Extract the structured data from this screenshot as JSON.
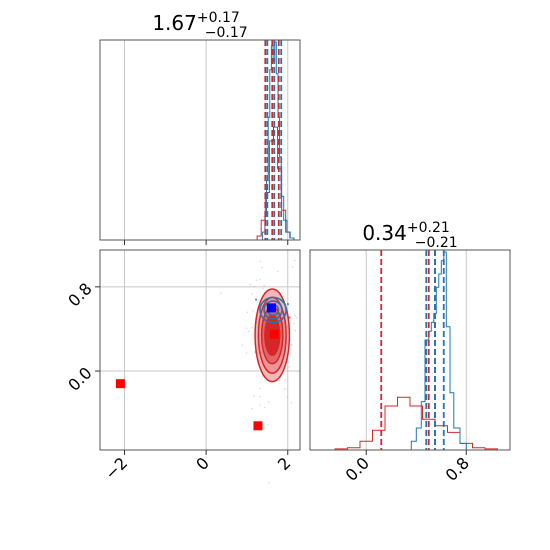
{
  "chart_data": {
    "type": "corner",
    "parameters": 2,
    "grid": true,
    "colors": {
      "blue": "#1f77b4",
      "red": "#d62728",
      "marker_red": "#ff0000",
      "marker_blue": "#0000ff",
      "grid": "#c8c8c8",
      "spine": "#555555"
    },
    "panels": [
      {
        "id": "param-0-marginal",
        "type": "histogram",
        "title": {
          "value": "1.67",
          "upper": "+0.17",
          "lower": "−0.17"
        },
        "xlim": [
          -2.6,
          2.3
        ],
        "xticks": [
          -2,
          0,
          2
        ],
        "blue_quantiles": [
          1.5,
          1.67,
          1.84
        ],
        "red_quantiles": [
          1.45,
          1.62,
          1.78
        ],
        "blue_hist": {
          "x": [
            1.3,
            1.38,
            1.44,
            1.48,
            1.52,
            1.56,
            1.6,
            1.64,
            1.68,
            1.72,
            1.76,
            1.8,
            1.84,
            1.9,
            1.98,
            2.06,
            2.15
          ],
          "y": [
            0,
            0.04,
            0.12,
            0.3,
            0.62,
            0.86,
            0.98,
            0.9,
            1.0,
            0.84,
            0.62,
            0.42,
            0.22,
            0.1,
            0.04,
            0.01,
            0
          ]
        },
        "red_hist": {
          "x": [
            1.15,
            1.25,
            1.35,
            1.45,
            1.55,
            1.65,
            1.75,
            1.85,
            1.95,
            2.05,
            2.15
          ],
          "y": [
            0,
            0.02,
            0.1,
            0.24,
            0.5,
            0.57,
            0.36,
            0.15,
            0.04,
            0.01,
            0
          ]
        }
      },
      {
        "id": "param-1-marginal",
        "type": "histogram",
        "title": {
          "value": "0.34",
          "upper": "+0.21",
          "lower": "−0.21"
        },
        "xlim": [
          -0.45,
          1.15
        ],
        "xticks": [
          0.0,
          0.8
        ],
        "xtick_labels": [
          "0.0",
          "0.8"
        ],
        "blue_quantiles": [
          0.48,
          0.55,
          0.62
        ],
        "red_quantiles": [
          0.12,
          0.5,
          0.55
        ],
        "blue_hist": {
          "x": [
            0.3,
            0.36,
            0.4,
            0.44,
            0.47,
            0.5,
            0.52,
            0.54,
            0.56,
            0.58,
            0.6,
            0.62,
            0.64,
            0.67,
            0.7,
            0.75,
            0.8
          ],
          "y": [
            0,
            0.04,
            0.1,
            0.22,
            0.5,
            0.54,
            0.58,
            0.62,
            0.74,
            0.8,
            0.86,
            0.9,
            0.56,
            0.26,
            0.1,
            0.03,
            0
          ]
        },
        "red_hist": {
          "x": [
            -0.35,
            -0.25,
            -0.15,
            -0.05,
            0.05,
            0.15,
            0.25,
            0.35,
            0.45,
            0.55,
            0.65,
            0.75,
            0.85,
            0.95,
            1.05
          ],
          "y": [
            0,
            0.005,
            0.01,
            0.04,
            0.09,
            0.2,
            0.24,
            0.2,
            0.14,
            0.11,
            0.08,
            0.03,
            0.01,
            0.005,
            0
          ]
        }
      },
      {
        "id": "joint",
        "type": "2d-contour",
        "xlim": [
          -2.6,
          2.3
        ],
        "ylim": [
          -0.75,
          1.15
        ],
        "xticks": [
          -2,
          0,
          2
        ],
        "yticks": [
          0.0,
          0.8
        ],
        "ytick_labels": [
          "0.0",
          "0.8"
        ],
        "red_contours": {
          "center": [
            1.62,
            0.34
          ],
          "sigma_levels": [
            {
              "rx": 0.42,
              "ry": 0.44,
              "fill": "#f3b8ba"
            },
            {
              "rx": 0.34,
              "ry": 0.36,
              "fill": "#ee9597"
            },
            {
              "rx": 0.26,
              "ry": 0.27,
              "fill": "#e26466"
            },
            {
              "rx": 0.18,
              "ry": 0.19,
              "fill": "#d62728"
            }
          ]
        },
        "blue_contours": {
          "center": [
            1.64,
            0.58
          ],
          "sigma_levels": [
            {
              "rx": 0.32,
              "ry": 0.12
            },
            {
              "rx": 0.22,
              "ry": 0.085
            },
            {
              "rx": 0.13,
              "ry": 0.05
            }
          ]
        },
        "red_markers": [
          [
            -2.1,
            -0.12
          ],
          [
            1.27,
            -0.52
          ],
          [
            1.67,
            0.35
          ]
        ],
        "blue_marker": [
          1.6,
          0.6
        ]
      }
    ]
  }
}
